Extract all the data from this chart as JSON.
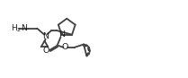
{
  "bg_color": "#ffffff",
  "line_color": "#404040",
  "lw": 1.3,
  "figsize": [
    2.09,
    0.87
  ],
  "dpi": 100,
  "xlim": [
    0.0,
    10.5
  ],
  "ylim": [
    0.5,
    4.5
  ]
}
